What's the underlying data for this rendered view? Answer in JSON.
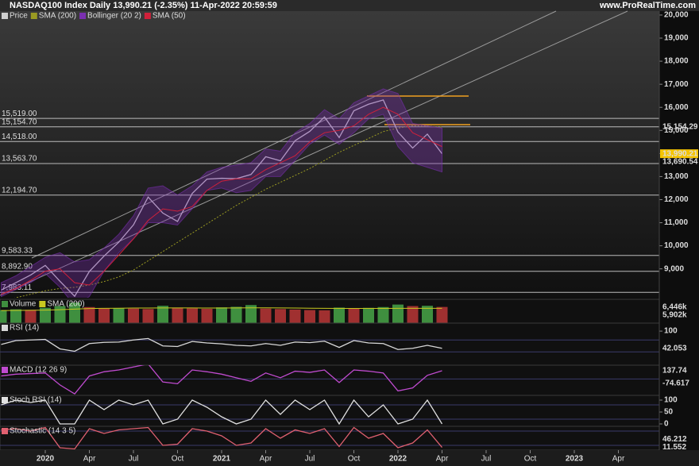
{
  "chart_data": [
    {
      "type": "line",
      "title": "NASDAQ100 Index Daily 13,990.21 (-2.35%) 11-Apr-2022 20:59:59",
      "source": "www.ProRealTime.com",
      "categories": [
        null,
        null,
        null,
        "2020",
        null,
        null,
        "Apr",
        null,
        null,
        "Jul",
        null,
        null,
        "Oct",
        null,
        null,
        "2021",
        null,
        null,
        "Apr",
        null,
        null,
        "Jul",
        null,
        null,
        "Oct",
        null,
        null,
        "2022",
        null,
        null,
        "Apr",
        null,
        null,
        "Jul",
        null,
        null,
        "Oct",
        null,
        null,
        "2023",
        null,
        null,
        "Apr"
      ],
      "series": [
        {
          "name": "Price",
          "color": "#cfcfcf",
          "values": [
            8083,
            8403,
            8733,
            9150,
            8462,
            7813,
            8890,
            9555,
            10157,
            10906,
            12111,
            11418,
            11053,
            12268,
            12888,
            12925,
            12909,
            13091,
            13860,
            13686,
            14554,
            14959,
            15583,
            14690,
            15851,
            16135,
            16320,
            14930,
            14237,
            14839,
            13990,
            null,
            null,
            null,
            null,
            null,
            null,
            null,
            null,
            null,
            null,
            null,
            null
          ]
        },
        {
          "name": "SMA (200)",
          "color": "#9a9a22",
          "values": [
            7600,
            7750,
            7900,
            8050,
            8150,
            8200,
            8300,
            8450,
            8650,
            8950,
            9350,
            9750,
            10150,
            10550,
            10950,
            11350,
            11750,
            12100,
            12450,
            12750,
            13050,
            13350,
            13700,
            14050,
            14350,
            14650,
            14950,
            15100,
            15200,
            15180,
            15150,
            null,
            null,
            null,
            null,
            null,
            null,
            null,
            null,
            null,
            null,
            null,
            null
          ]
        },
        {
          "name": "Bollinger (20 2)",
          "color": "#7a2fb0",
          "values": [
            8400,
            8700,
            9100,
            9500,
            9700,
            9300,
            9400,
            9900,
            10500,
            11300,
            12500,
            12600,
            12200,
            12600,
            13200,
            13400,
            13500,
            13600,
            14200,
            14100,
            14900,
            15300,
            15900,
            15500,
            16200,
            16500,
            16800,
            16600,
            15300,
            15200,
            15100,
            null,
            null,
            null,
            null,
            null,
            null,
            null,
            null,
            null,
            null,
            null,
            null
          ],
          "lower": [
            7800,
            8100,
            8400,
            8800,
            8200,
            7400,
            7800,
            8900,
            9700,
            10300,
            11000,
            11000,
            10900,
            11600,
            12400,
            12500,
            12300,
            12400,
            13000,
            13000,
            13700,
            14400,
            14800,
            14400,
            14900,
            15500,
            15700,
            14300,
            13600,
            13400,
            13200,
            null,
            null,
            null,
            null,
            null,
            null,
            null,
            null,
            null,
            null,
            null,
            null
          ]
        },
        {
          "name": "SMA (50)",
          "color": "#d0203a",
          "values": [
            7900,
            8150,
            8500,
            8900,
            9000,
            8400,
            8300,
            8900,
            9600,
            10300,
            11100,
            11600,
            11500,
            11700,
            12400,
            12800,
            12900,
            12900,
            13300,
            13600,
            13900,
            14500,
            14900,
            15000,
            15200,
            15700,
            16000,
            15700,
            14900,
            14600,
            14300,
            null,
            null,
            null,
            null,
            null,
            null,
            null,
            null,
            null,
            null,
            null,
            null
          ]
        }
      ],
      "ylim": [
        7750,
        20170
      ],
      "yticks": [
        {
          "value": 9000,
          "label": "9,000"
        },
        {
          "value": 10000,
          "label": "10,000"
        },
        {
          "value": 11000,
          "label": "11,000"
        },
        {
          "value": 12000,
          "label": "12,000"
        },
        {
          "value": 13000,
          "label": "13,000"
        },
        {
          "value": 14000,
          "label": "14,000"
        },
        {
          "value": 15000,
          "label": "15,000"
        },
        {
          "value": 16000,
          "label": "16,000"
        },
        {
          "value": 17000,
          "label": "17,000"
        },
        {
          "value": 18000,
          "label": "18,000"
        },
        {
          "value": 19000,
          "label": "19,000"
        },
        {
          "value": 20000,
          "label": "20,000"
        }
      ],
      "levels": [
        {
          "value": 15519,
          "label": "15,519.00"
        },
        {
          "value": 15154.7,
          "label": "15,154.70"
        },
        {
          "value": 14518,
          "label": "14,518.00"
        },
        {
          "value": 13563.7,
          "label": "13,563.70"
        },
        {
          "value": 12194.7,
          "label": "12,194.70"
        },
        {
          "value": 9583.33,
          "label": "9,583.33"
        },
        {
          "value": 8892.9,
          "label": "8,892.90"
        },
        {
          "value": 7983.11,
          "label": "7,983.11"
        }
      ],
      "markers": [
        {
          "value": 15154.29,
          "label": "15,154.29",
          "color": "#f0d800"
        },
        {
          "value": 13990.21,
          "label": "13,990.21",
          "color": "#000000",
          "background": "#f5c400"
        },
        {
          "value": 13690.54,
          "label": "13,690.54",
          "color": "#7a6aa0"
        }
      ]
    },
    {
      "type": "bar",
      "series": [
        {
          "name": "Volume",
          "color": "#3f8f3f",
          "values": [
            5200,
            5500,
            5300,
            6100,
            6800,
            8200,
            6400,
            5900,
            6000,
            5800,
            5600,
            6900,
            6200,
            5900,
            5700,
            6300,
            6500,
            7200,
            5800,
            5600,
            5400,
            5200,
            5100,
            6200,
            5900,
            6100,
            6400,
            7400,
            6800,
            6900,
            6446
          ]
        },
        {
          "name": "SMA (200)",
          "color": "#c8c820",
          "values": [
            5000,
            5050,
            5100,
            5200,
            5350,
            5600,
            5800,
            5900,
            5950,
            6000,
            6000,
            6050,
            6050,
            6050,
            6000,
            6000,
            6050,
            6100,
            6100,
            6050,
            6000,
            5950,
            5900,
            5850,
            5850,
            5850,
            5870,
            5900,
            5910,
            5905,
            5902
          ]
        }
      ],
      "ylim": [
        0,
        9500
      ],
      "markers": [
        {
          "value": 6446,
          "label": "6,446k",
          "color": "#f0d800"
        },
        {
          "value": 5902,
          "label": "5,902k",
          "color": "#e05050"
        }
      ]
    },
    {
      "type": "line",
      "series": [
        {
          "name": "RSI (14)",
          "color": "#d8d8d8",
          "values": [
            55,
            68,
            70,
            72,
            40,
            32,
            58,
            62,
            63,
            70,
            75,
            50,
            48,
            65,
            60,
            57,
            52,
            50,
            58,
            52,
            63,
            61,
            66,
            45,
            68,
            60,
            58,
            38,
            42,
            52,
            42.053
          ]
        }
      ],
      "ylim": [
        -15,
        127
      ],
      "yticks": [
        100
      ],
      "levels": [
        30,
        70
      ],
      "markers": [
        {
          "value": 42.053,
          "label": "42.053",
          "color": "#ffffff"
        }
      ]
    },
    {
      "type": "line",
      "series": [
        {
          "name": "MACD (12 26 9)",
          "color": "#c04bd0",
          "values": [
            50,
            80,
            90,
            100,
            -100,
            -250,
            50,
            120,
            150,
            200,
            250,
            -50,
            -80,
            150,
            120,
            80,
            20,
            -40,
            100,
            20,
            130,
            110,
            150,
            -60,
            150,
            130,
            100,
            -200,
            -150,
            60,
            137.74
          ]
        }
      ],
      "ylim": [
        -274,
        230
      ],
      "levels": [
        0
      ],
      "markers": [
        {
          "value": 137.74,
          "label": "137.74",
          "color": "#e05050"
        },
        {
          "value": -74.617,
          "label": "-74.617",
          "color": "#e05050"
        }
      ]
    },
    {
      "type": "line",
      "series": [
        {
          "name": "Stoch RSI (14)",
          "color": "#e0e0e0",
          "values": [
            80,
            100,
            90,
            100,
            0,
            0,
            100,
            60,
            100,
            80,
            100,
            0,
            20,
            100,
            70,
            30,
            0,
            20,
            100,
            40,
            100,
            60,
            100,
            0,
            100,
            30,
            80,
            0,
            20,
            100,
            0
          ]
        }
      ],
      "ylim": [
        -10,
        120
      ],
      "yticks": [
        0,
        50,
        100
      ],
      "levels": [
        20,
        80
      ]
    },
    {
      "type": "line",
      "series": [
        {
          "name": "Stochastic (14 3 5)",
          "color": "#e06070",
          "values": [
            85,
            90,
            80,
            95,
            10,
            5,
            90,
            70,
            85,
            90,
            95,
            20,
            25,
            90,
            80,
            60,
            20,
            30,
            90,
            50,
            85,
            70,
            90,
            15,
            95,
            50,
            70,
            10,
            30,
            85,
            11.552
          ]
        }
      ],
      "ylim": [
        0,
        100
      ],
      "levels": [
        20,
        80
      ],
      "markers": [
        {
          "value": 46.212,
          "label": "46.212",
          "color": "#e05050"
        },
        {
          "value": 11.552,
          "label": "11.552",
          "color": "#e05050"
        }
      ]
    }
  ]
}
